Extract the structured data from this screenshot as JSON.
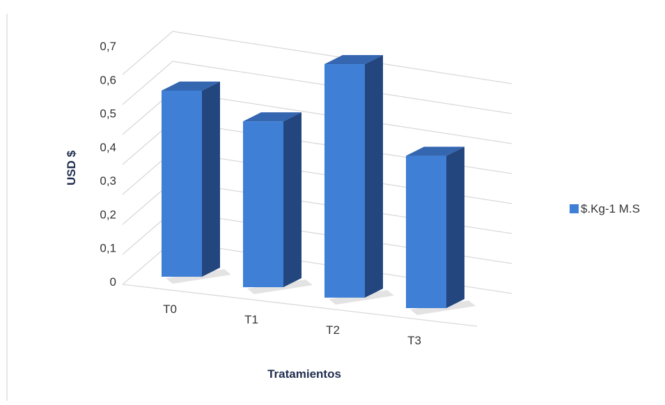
{
  "chart_data": {
    "type": "bar",
    "categories": [
      "T0",
      "T1",
      "T2",
      "T3"
    ],
    "series": [
      {
        "name": "$.Kg-1 M.S",
        "values": [
          0.55,
          0.49,
          0.69,
          0.45
        ]
      }
    ],
    "xlabel": "Tratamientos",
    "ylabel": "USD $",
    "ylim": [
      0,
      0.7
    ],
    "yticks": [
      "0",
      "0,1",
      "0,2",
      "0,3",
      "0,4",
      "0,5",
      "0,6",
      "0,7"
    ],
    "grid": true,
    "legend": "right",
    "colors": {
      "front": "#3f7fd6",
      "side": "#24467e",
      "top": "#3566b0",
      "grid": "#d9d9d9"
    }
  }
}
